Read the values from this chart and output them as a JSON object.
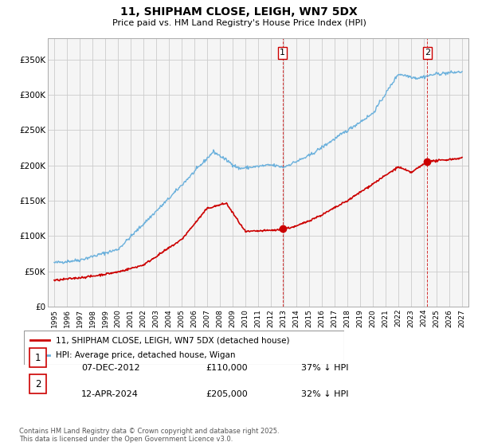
{
  "title": "11, SHIPHAM CLOSE, LEIGH, WN7 5DX",
  "subtitle": "Price paid vs. HM Land Registry's House Price Index (HPI)",
  "hpi_label": "HPI: Average price, detached house, Wigan",
  "property_label": "11, SHIPHAM CLOSE, LEIGH, WN7 5DX (detached house)",
  "annotation1": {
    "number": "1",
    "date": "07-DEC-2012",
    "price": "£110,000",
    "note": "37% ↓ HPI"
  },
  "annotation2": {
    "number": "2",
    "date": "12-APR-2024",
    "price": "£205,000",
    "note": "32% ↓ HPI"
  },
  "footer": "Contains HM Land Registry data © Crown copyright and database right 2025.\nThis data is licensed under the Open Government Licence v3.0.",
  "hpi_color": "#6ab0dc",
  "property_color": "#cc0000",
  "ylim": [
    0,
    380000
  ],
  "yticks": [
    0,
    50000,
    100000,
    150000,
    200000,
    250000,
    300000,
    350000
  ],
  "ytick_labels": [
    "£0",
    "£50K",
    "£100K",
    "£150K",
    "£200K",
    "£250K",
    "£300K",
    "£350K"
  ],
  "xlim_start": 1994.5,
  "xlim_end": 2027.5,
  "xticks": [
    1995,
    1996,
    1997,
    1998,
    1999,
    2000,
    2001,
    2002,
    2003,
    2004,
    2005,
    2006,
    2007,
    2008,
    2009,
    2010,
    2011,
    2012,
    2013,
    2014,
    2015,
    2016,
    2017,
    2018,
    2019,
    2020,
    2021,
    2022,
    2023,
    2024,
    2025,
    2026,
    2027
  ],
  "grid_color": "#cccccc",
  "bg_color": "#f5f5f5",
  "sale1_x": 2012.92,
  "sale1_y": 110000,
  "sale2_x": 2024.28,
  "sale2_y": 205000
}
